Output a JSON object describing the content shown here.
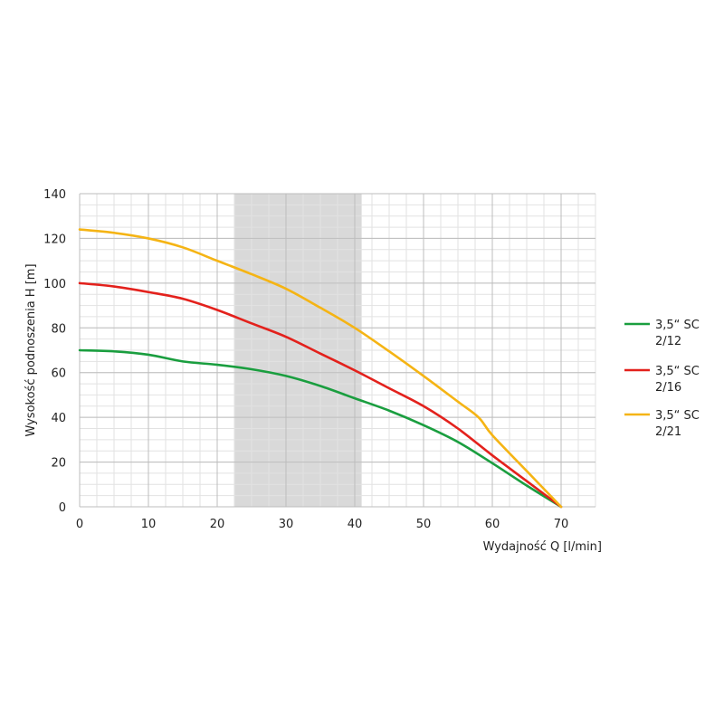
{
  "chart_data": {
    "type": "line",
    "xlabel": "Wydajność Q [l/min]",
    "ylabel": "Wysokość podnoszenia H [m]",
    "xlim": [
      0,
      75
    ],
    "ylim": [
      0,
      140
    ],
    "x_ticks": [
      0,
      10,
      20,
      30,
      40,
      50,
      60,
      70
    ],
    "y_ticks": [
      0,
      20,
      40,
      60,
      80,
      100,
      120,
      140
    ],
    "grid": true,
    "shaded_range": [
      22.5,
      41
    ],
    "shaded_color": "#d9d9d9",
    "legend_position": "right",
    "series": [
      {
        "name": "3,5“ SC 2/12",
        "color": "#1a9e3f",
        "x": [
          0,
          5,
          10,
          15,
          20,
          25,
          30,
          35,
          40,
          45,
          50,
          55,
          60,
          65,
          70
        ],
        "y": [
          70,
          69.5,
          68,
          65,
          63.5,
          61.5,
          58.5,
          54,
          48.5,
          43,
          36.5,
          29,
          19.5,
          9.5,
          0
        ]
      },
      {
        "name": "3,5“ SC 2/16",
        "color": "#e3211c",
        "x": [
          0,
          5,
          10,
          15,
          20,
          25,
          30,
          35,
          40,
          45,
          50,
          55,
          60,
          65,
          70
        ],
        "y": [
          100,
          98.5,
          96,
          93,
          88,
          82,
          76,
          68.5,
          61,
          53,
          45,
          35,
          23,
          11.5,
          0
        ]
      },
      {
        "name": "3,5“ SC 2/21",
        "color": "#f5b414",
        "x": [
          0,
          5,
          10,
          15,
          20,
          25,
          30,
          35,
          40,
          45,
          50,
          55,
          58,
          60,
          65,
          70
        ],
        "y": [
          124,
          122.5,
          120,
          116,
          110,
          104,
          97.5,
          89,
          80,
          69.5,
          58.5,
          47,
          40,
          32,
          16,
          0
        ]
      }
    ]
  }
}
